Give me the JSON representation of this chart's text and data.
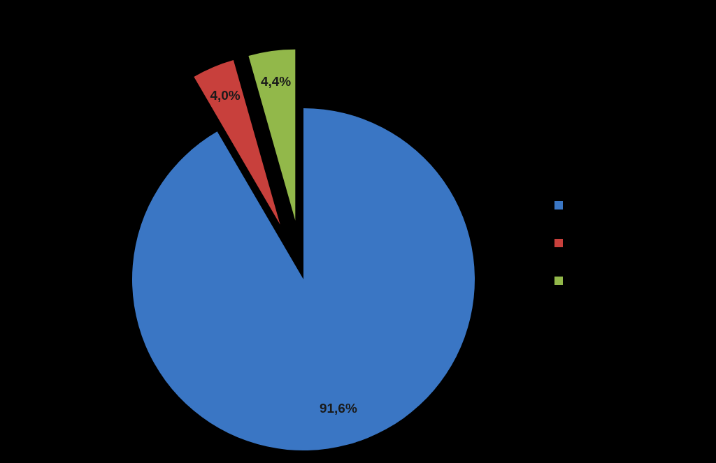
{
  "chart_data": {
    "type": "pie",
    "categories": [
      null,
      null,
      null
    ],
    "values": [
      91.6,
      4.0,
      4.4
    ],
    "value_labels": [
      "91,6%",
      "4,0%",
      "4,4%"
    ],
    "colors": [
      "#3a76c4",
      "#c8403c",
      "#92b84a"
    ]
  }
}
